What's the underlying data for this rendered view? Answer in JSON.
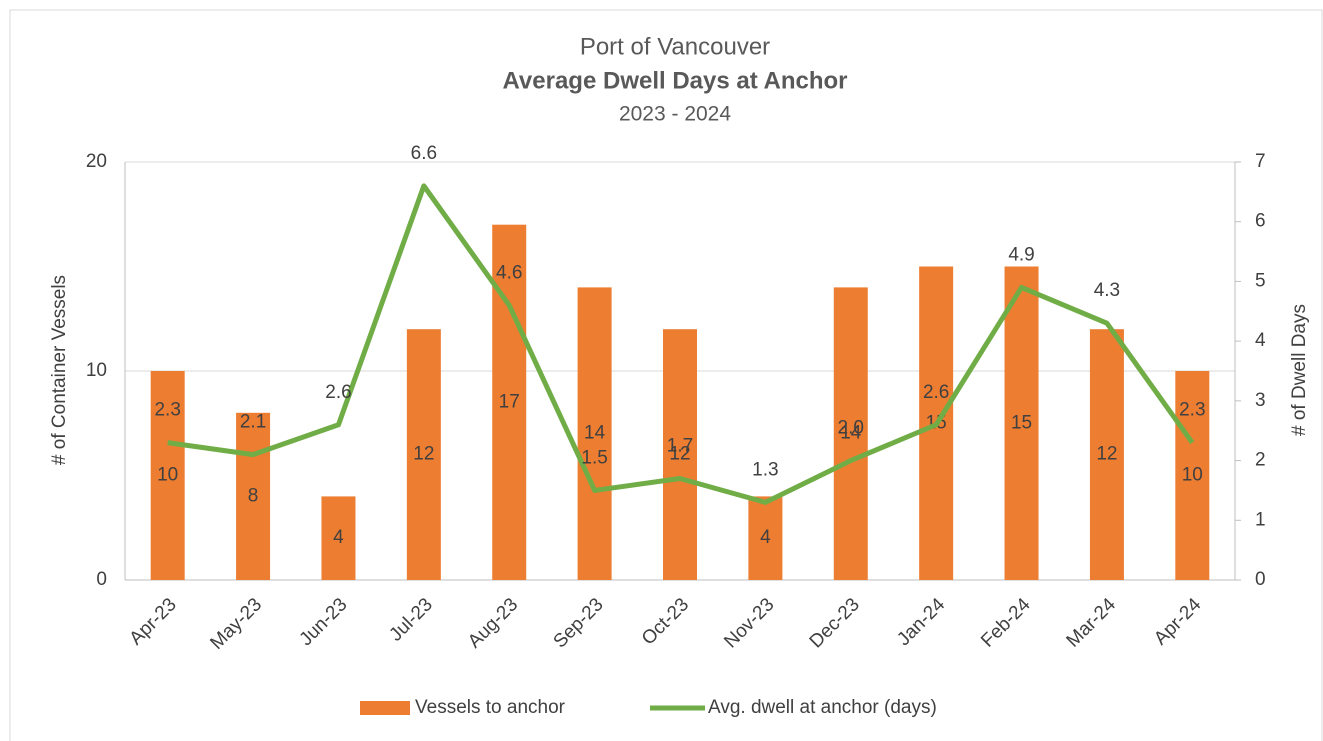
{
  "chart_data": {
    "type": "bar",
    "title": "Port of Vancouver",
    "subtitle": "Average Dwell Days at Anchor",
    "subtitle2": "2023 - 2024",
    "y_label": "# of Container Vessels",
    "y2_label": "# of Dwell Days",
    "categories": [
      "Apr-23",
      "May-23",
      "Jun-23",
      "Jul-23",
      "Aug-23",
      "Sep-23",
      "Oct-23",
      "Nov-23",
      "Dec-23",
      "Jan-24",
      "Feb-24",
      "Mar-24",
      "Apr-24"
    ],
    "series": [
      {
        "name": "Vessels to anchor",
        "type": "bar",
        "color": "#ED7D31",
        "values": [
          10,
          8,
          4,
          12,
          17,
          14,
          12,
          4,
          14,
          15,
          15,
          12,
          10
        ]
      },
      {
        "name": "Avg. dwell at anchor (days)",
        "type": "line",
        "axis": "y2",
        "color": "#70AD47",
        "values": [
          2.3,
          2.1,
          2.6,
          6.6,
          4.6,
          1.5,
          1.7,
          1.3,
          2.0,
          2.6,
          4.9,
          4.3,
          2.3
        ],
        "value_labels": [
          "2.3",
          "2.1",
          "2.6",
          "6.6",
          "4.6",
          "1.5",
          "1.7",
          "1.3",
          "2.0",
          "2.6",
          "4.9",
          "4.3",
          "2.3"
        ]
      }
    ],
    "ylim": [
      0,
      20
    ],
    "yticks": [
      0,
      10,
      20
    ],
    "y2lim": [
      0,
      7
    ],
    "y2ticks": [
      0,
      1,
      2,
      3,
      4,
      5,
      6,
      7
    ],
    "grid": true,
    "legend": "bottom"
  }
}
